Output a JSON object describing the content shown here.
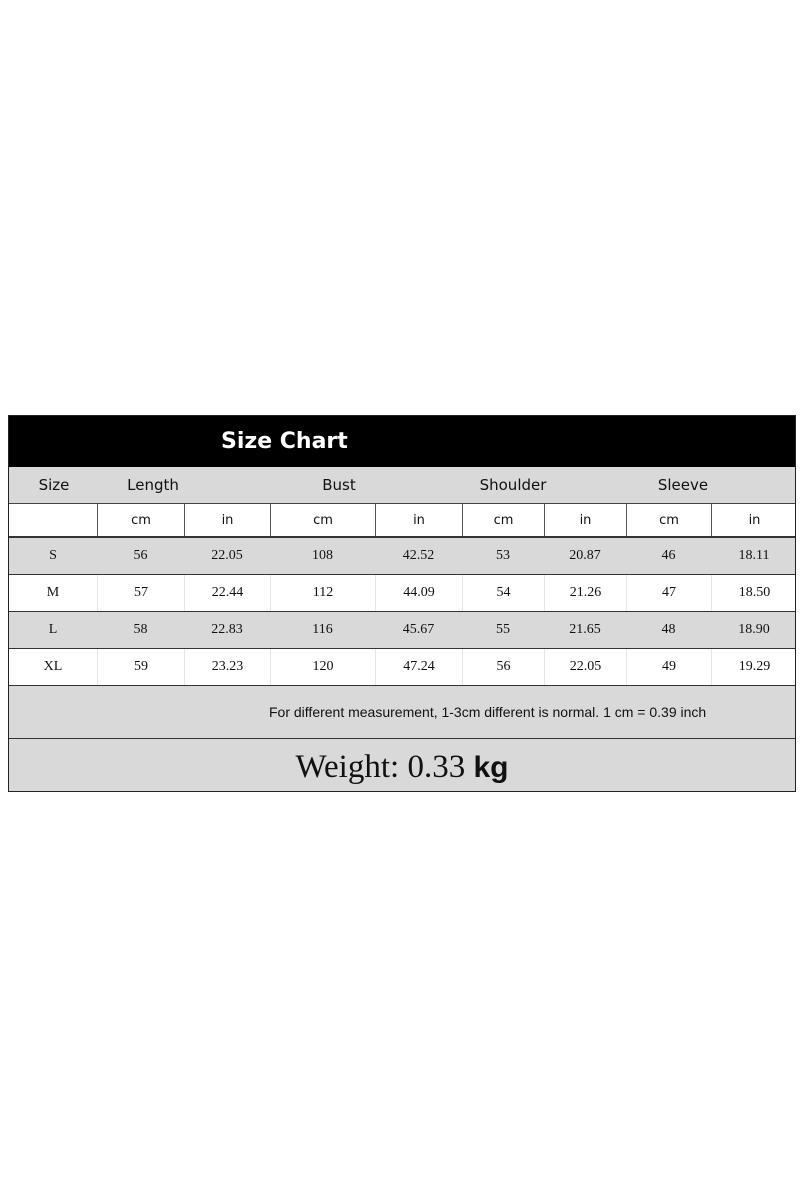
{
  "title": "Size Chart",
  "headers": [
    "Size",
    "Length",
    "Bust",
    "Shoulder",
    "Sleeve"
  ],
  "units": [
    "",
    "cm",
    "in",
    "cm",
    "in",
    "cm",
    "in",
    "cm",
    "in"
  ],
  "rows": [
    [
      "S",
      "56",
      "22.05",
      "108",
      "42.52",
      "53",
      "20.87",
      "46",
      "18.11"
    ],
    [
      "M",
      "57",
      "22.44",
      "112",
      "44.09",
      "54",
      "21.26",
      "47",
      "18.50"
    ],
    [
      "L",
      "58",
      "22.83",
      "116",
      "45.67",
      "55",
      "21.65",
      "48",
      "18.90"
    ],
    [
      "XL",
      "59",
      "23.23",
      "120",
      "47.24",
      "56",
      "22.05",
      "49",
      "19.29"
    ]
  ],
  "note": "For different measurement, 1-3cm different is normal. 1 cm = 0.39 inch",
  "weight": {
    "label": "Weight: 0.33",
    "unit": "kg"
  }
}
